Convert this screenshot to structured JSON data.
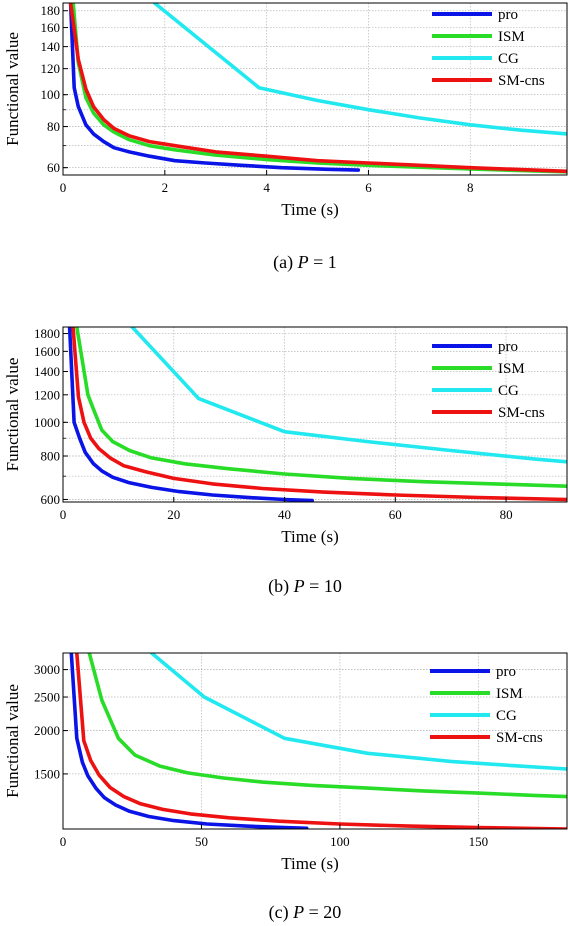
{
  "chart_data": [
    {
      "type": "line",
      "caption": {
        "prefix": "(a)",
        "var": "P",
        "rest": " = 1"
      },
      "xlabel": "Time (s)",
      "ylabel": "Functional value",
      "xlim": [
        0,
        9.9
      ],
      "ylim": [
        57,
        190
      ],
      "yscale": "log",
      "xticks": [
        0,
        2,
        4,
        6,
        8
      ],
      "yticks": [
        60,
        80,
        100,
        120,
        140,
        160,
        180
      ],
      "grid": true,
      "legend": "top-right",
      "series": [
        {
          "name": "pro",
          "color": "#0a14e6",
          "x": [
            0.15,
            0.22,
            0.3,
            0.45,
            0.6,
            0.8,
            1.0,
            1.3,
            1.7,
            2.2,
            2.8,
            3.5,
            4.3,
            5.2,
            5.8
          ],
          "y": [
            190,
            105,
            92,
            81,
            76,
            72,
            69,
            67,
            65,
            63,
            62,
            61,
            60,
            59.3,
            59
          ]
        },
        {
          "name": "ISM",
          "color": "#28dc28",
          "x": [
            0.2,
            0.3,
            0.45,
            0.6,
            0.8,
            1.0,
            1.3,
            1.7,
            2.2,
            3.0,
            4.0,
            5.0,
            6.0,
            7.0,
            8.0,
            9.0,
            9.9
          ],
          "y": [
            190,
            125,
            98,
            88,
            81,
            77,
            73,
            70,
            68,
            65.5,
            63.5,
            62,
            61,
            60.2,
            59.5,
            58.8,
            58.3
          ]
        },
        {
          "name": "CG",
          "color": "#22e8f0",
          "x": [
            1.8,
            3.85,
            5.0,
            6.0,
            7.0,
            8.0,
            9.0,
            9.9
          ],
          "y": [
            190,
            105,
            96,
            90,
            85,
            81,
            78,
            76
          ]
        },
        {
          "name": "SM-cns",
          "color": "#ee1111",
          "x": [
            0.15,
            0.3,
            0.45,
            0.6,
            0.8,
            1.0,
            1.3,
            1.7,
            2.2,
            3.0,
            4.0,
            5.0,
            6.0,
            7.0,
            8.0,
            9.0,
            9.9
          ],
          "y": [
            190,
            128,
            104,
            92,
            84,
            79,
            75,
            72,
            70,
            67,
            65,
            63,
            62,
            61,
            60,
            59.2,
            58.5
          ]
        }
      ]
    },
    {
      "type": "line",
      "caption": {
        "prefix": "(b)",
        "var": "P",
        "rest": " = 10"
      },
      "xlabel": "Time (s)",
      "ylabel": "Functional value",
      "xlim": [
        0,
        91
      ],
      "ylim": [
        590,
        1880
      ],
      "yscale": "log",
      "xticks": [
        0,
        20,
        40,
        60,
        80
      ],
      "yticks": [
        600,
        800,
        1000,
        1200,
        1400,
        1600,
        1800
      ],
      "grid": true,
      "legend": "top-right",
      "series": [
        {
          "name": "pro",
          "color": "#0a14e6",
          "x": [
            1.2,
            2,
            3,
            4,
            5.5,
            7,
            9,
            12,
            16,
            21,
            27,
            34,
            40,
            45
          ],
          "y": [
            1880,
            1000,
            900,
            820,
            760,
            725,
            695,
            670,
            650,
            632,
            618,
            607,
            600,
            596
          ]
        },
        {
          "name": "ISM",
          "color": "#28dc28",
          "x": [
            2.5,
            3.5,
            4.5,
            5.5,
            7,
            9,
            12,
            16,
            22,
            30,
            40,
            52,
            65,
            78,
            91
          ],
          "y": [
            1880,
            1500,
            1200,
            1090,
            950,
            880,
            830,
            790,
            760,
            735,
            710,
            690,
            675,
            665,
            655
          ]
        },
        {
          "name": "CG",
          "color": "#22e8f0",
          "x": [
            12.5,
            24.5,
            40,
            55,
            70,
            85,
            91
          ],
          "y": [
            1880,
            1170,
            940,
            880,
            830,
            785,
            770
          ]
        },
        {
          "name": "SM-cns",
          "color": "#ee1111",
          "x": [
            1.8,
            2.8,
            3.8,
            5,
            6.5,
            8.5,
            11,
            15,
            20,
            27,
            36,
            47,
            60,
            75,
            91
          ],
          "y": [
            1880,
            1180,
            1000,
            900,
            840,
            790,
            750,
            720,
            690,
            665,
            645,
            630,
            618,
            608,
            600
          ]
        }
      ]
    },
    {
      "type": "line",
      "caption": {
        "prefix": "(c)",
        "var": "P",
        "rest": " = 20"
      },
      "xlabel": "Time (s)",
      "ylabel": "Functional value",
      "xlim": [
        0,
        182
      ],
      "ylim": [
        1040,
        3350
      ],
      "yscale": "log",
      "xticks": [
        0,
        50,
        100,
        150
      ],
      "ytick_labels_shown": [
        1500,
        2000,
        2500,
        3000
      ],
      "grid": true,
      "legend": "top-right",
      "series": [
        {
          "name": "pro",
          "color": "#0a14e6",
          "x": [
            3,
            5,
            7,
            9,
            12,
            15,
            19,
            24,
            31,
            40,
            52,
            66,
            80,
            88
          ],
          "y": [
            3350,
            1900,
            1620,
            1480,
            1360,
            1280,
            1220,
            1170,
            1130,
            1100,
            1075,
            1060,
            1050,
            1045
          ]
        },
        {
          "name": "ISM",
          "color": "#28dc28",
          "x": [
            9.5,
            14,
            20,
            26,
            35,
            45,
            58,
            72,
            90,
            110,
            130,
            150,
            170,
            182
          ],
          "y": [
            3350,
            2450,
            1900,
            1700,
            1580,
            1510,
            1460,
            1420,
            1390,
            1365,
            1340,
            1320,
            1300,
            1290
          ]
        },
        {
          "name": "CG",
          "color": "#22e8f0",
          "x": [
            32,
            51,
            80,
            110,
            140,
            165,
            182
          ],
          "y": [
            3350,
            2500,
            1900,
            1720,
            1630,
            1580,
            1550
          ]
        },
        {
          "name": "SM-cns",
          "color": "#ee1111",
          "x": [
            5,
            7.5,
            10,
            13,
            17,
            22,
            28,
            36,
            46,
            60,
            78,
            100,
            125,
            150,
            182
          ],
          "y": [
            3350,
            1870,
            1640,
            1490,
            1370,
            1290,
            1230,
            1185,
            1150,
            1120,
            1095,
            1075,
            1060,
            1050,
            1040
          ]
        }
      ]
    }
  ]
}
